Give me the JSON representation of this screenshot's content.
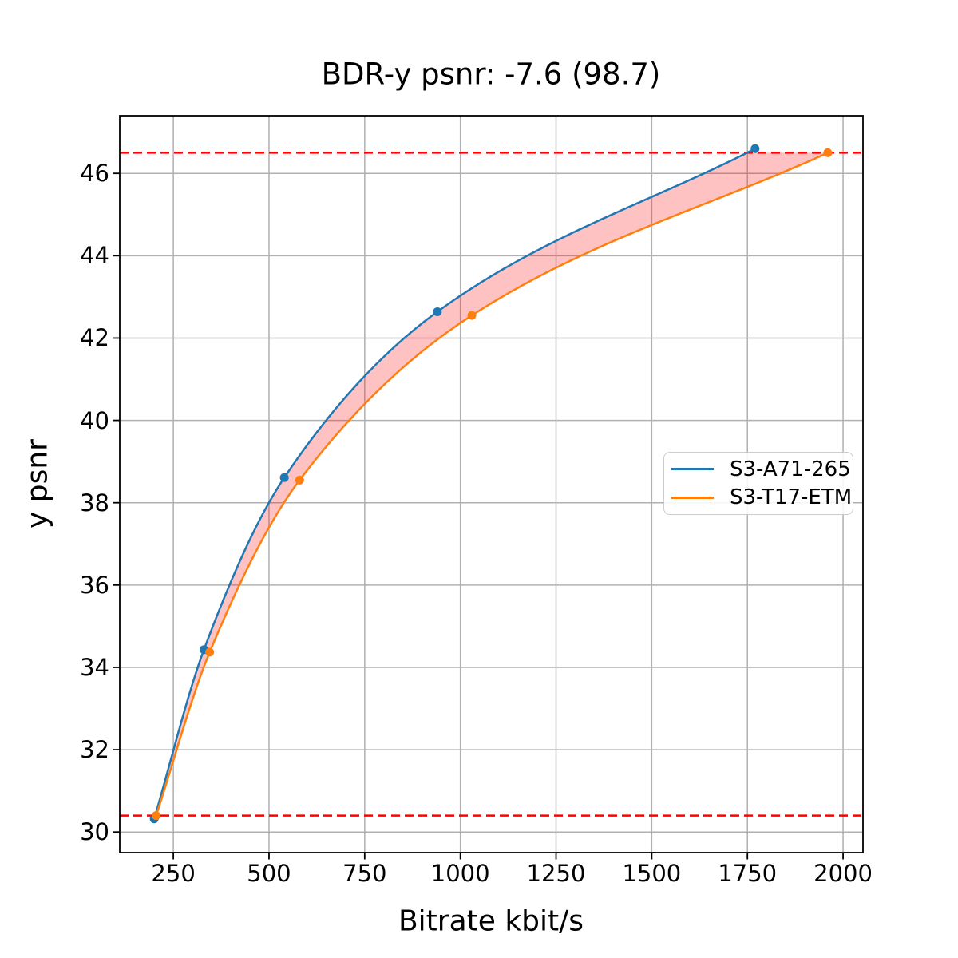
{
  "title": "BDR-y psnr: -7.6 (98.7)",
  "xlabel": "Bitrate kbit/s",
  "ylabel": "y psnr",
  "legend": {
    "position": "center-right",
    "items": [
      {
        "label": "S3-A71-265",
        "color": "#1f77b4"
      },
      {
        "label": "S3-T17-ETM",
        "color": "#ff7f0e"
      }
    ]
  },
  "chart_data": {
    "type": "line",
    "title": "BDR-y psnr: -7.6 (98.7)",
    "xlabel": "Bitrate kbit/s",
    "ylabel": "y psnr",
    "xlim": [
      110,
      2052
    ],
    "ylim": [
      29.5,
      47.4
    ],
    "x_ticks": [
      250,
      500,
      750,
      1000,
      1250,
      1500,
      1750,
      2000
    ],
    "y_ticks": [
      30,
      32,
      34,
      36,
      38,
      40,
      42,
      44,
      46
    ],
    "grid": true,
    "grid_color": "#b0b0b0",
    "series": [
      {
        "name": "S3-A71-265",
        "color": "#1f77b4",
        "marker": "circle",
        "points": [
          [
            200,
            30.32
          ],
          [
            330,
            34.43
          ],
          [
            540,
            38.61
          ],
          [
            940,
            42.64
          ],
          [
            1770,
            46.6
          ]
        ]
      },
      {
        "name": "S3-T17-ETM",
        "color": "#ff7f0e",
        "marker": "circle",
        "points": [
          [
            205,
            30.4
          ],
          [
            345,
            34.37
          ],
          [
            580,
            38.55
          ],
          [
            1030,
            42.55
          ],
          [
            1960,
            46.5
          ]
        ]
      }
    ],
    "hlines": {
      "color": "#ff0000",
      "style": "dashed",
      "values": [
        46.5,
        30.4
      ]
    },
    "fill_between": {
      "color": "rgba(255,0,0,0.24)",
      "psnr_range": [
        30.4,
        46.5
      ],
      "between": [
        "S3-A71-265",
        "S3-T17-ETM"
      ]
    }
  }
}
